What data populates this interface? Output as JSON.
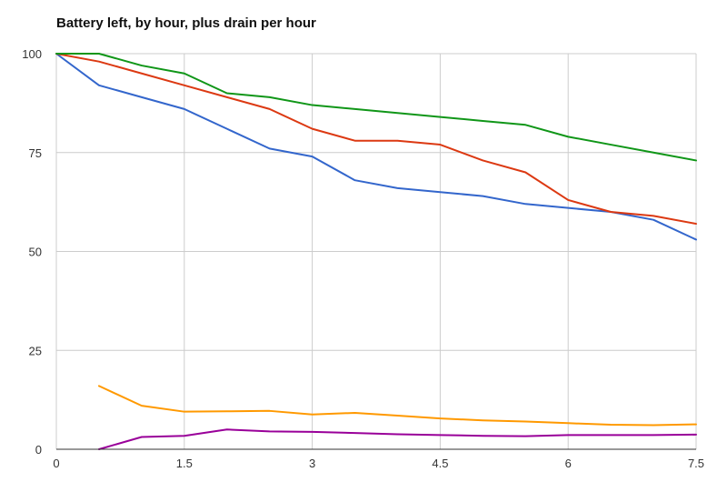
{
  "chart_data": {
    "type": "line",
    "title": "Battery left, by hour, plus drain per hour",
    "xlabel": "",
    "ylabel": "",
    "xlim": [
      0,
      7.5
    ],
    "ylim": [
      0,
      100
    ],
    "x_ticks": [
      0,
      1.5,
      3,
      4.5,
      6,
      7.5
    ],
    "x_tick_labels": [
      "0",
      "1.5",
      "3",
      "4.5",
      "6",
      "7.5"
    ],
    "y_ticks": [
      0,
      25,
      50,
      75,
      100
    ],
    "y_tick_labels": [
      "0",
      "25",
      "50",
      "75",
      "100"
    ],
    "grid": true,
    "legend": "none",
    "series": [
      {
        "color": "#3366cc",
        "points": [
          [
            0,
            100
          ],
          [
            0.5,
            92
          ],
          [
            1,
            89
          ],
          [
            1.5,
            86
          ],
          [
            2,
            81
          ],
          [
            2.5,
            76
          ],
          [
            3,
            74
          ],
          [
            3.5,
            68
          ],
          [
            4,
            66
          ],
          [
            4.5,
            65
          ],
          [
            5,
            64
          ],
          [
            5.5,
            62
          ],
          [
            6,
            61
          ],
          [
            6.5,
            60
          ],
          [
            7,
            58
          ],
          [
            7.5,
            53
          ]
        ]
      },
      {
        "color": "#dc3912",
        "points": [
          [
            0,
            100
          ],
          [
            0.5,
            98
          ],
          [
            1,
            95
          ],
          [
            1.5,
            92
          ],
          [
            2,
            89
          ],
          [
            2.5,
            86
          ],
          [
            3,
            81
          ],
          [
            3.5,
            78
          ],
          [
            4,
            78
          ],
          [
            4.5,
            77
          ],
          [
            5,
            73
          ],
          [
            5.5,
            70
          ],
          [
            6,
            63
          ],
          [
            6.5,
            60
          ],
          [
            7,
            59
          ],
          [
            7.5,
            57
          ]
        ]
      },
      {
        "color": "#109618",
        "points": [
          [
            0,
            100
          ],
          [
            0.5,
            100
          ],
          [
            1,
            97
          ],
          [
            1.5,
            95
          ],
          [
            2,
            90
          ],
          [
            2.5,
            89
          ],
          [
            3,
            87
          ],
          [
            3.5,
            86
          ],
          [
            4,
            85
          ],
          [
            4.5,
            84
          ],
          [
            5,
            83
          ],
          [
            5.5,
            82
          ],
          [
            6,
            79
          ],
          [
            6.5,
            77
          ],
          [
            7,
            75
          ],
          [
            7.5,
            73
          ]
        ]
      },
      {
        "color": "#ff9900",
        "points": [
          [
            0.5,
            16
          ],
          [
            1,
            11
          ],
          [
            1.5,
            9.5
          ],
          [
            2,
            9.6
          ],
          [
            2.5,
            9.7
          ],
          [
            3,
            8.8
          ],
          [
            3.5,
            9.2
          ],
          [
            4,
            8.5
          ],
          [
            4.5,
            7.8
          ],
          [
            5,
            7.3
          ],
          [
            5.5,
            7
          ],
          [
            6,
            6.6
          ],
          [
            6.5,
            6.2
          ],
          [
            7,
            6.1
          ],
          [
            7.5,
            6.3
          ]
        ]
      },
      {
        "color": "#990099",
        "points": [
          [
            0.5,
            0
          ],
          [
            1,
            3.1
          ],
          [
            1.5,
            3.4
          ],
          [
            2,
            5
          ],
          [
            2.5,
            4.5
          ],
          [
            3,
            4.4
          ],
          [
            3.5,
            4.1
          ],
          [
            4,
            3.8
          ],
          [
            4.5,
            3.6
          ],
          [
            5,
            3.4
          ],
          [
            5.5,
            3.3
          ],
          [
            6,
            3.6
          ],
          [
            6.5,
            3.6
          ],
          [
            7,
            3.6
          ],
          [
            7.5,
            3.7
          ]
        ]
      }
    ]
  }
}
